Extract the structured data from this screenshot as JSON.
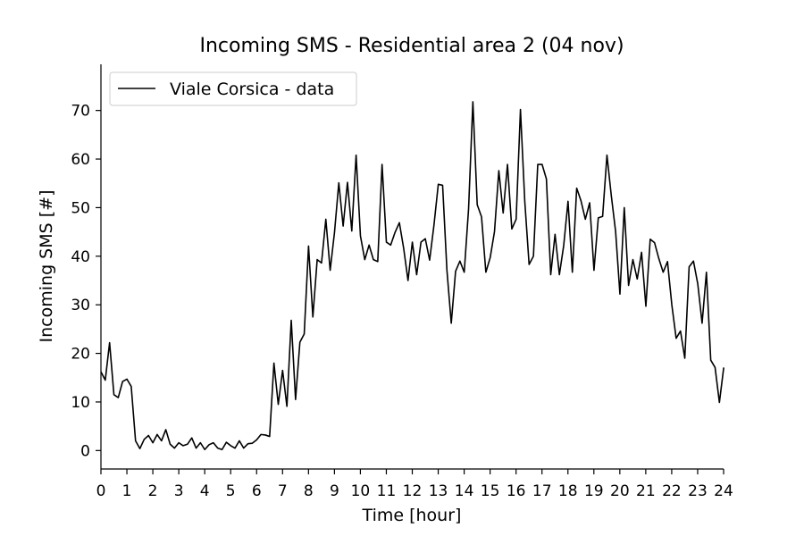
{
  "chart_data": {
    "type": "line",
    "title": "Incoming SMS - Residential area 2 (04 nov)",
    "xlabel": "Time [hour]",
    "ylabel": "Incoming SMS [#]",
    "xlim": [
      0,
      24
    ],
    "ylim": [
      -3.8,
      79.5
    ],
    "xticks": [
      0,
      1,
      2,
      3,
      4,
      5,
      6,
      7,
      8,
      9,
      10,
      11,
      12,
      13,
      14,
      15,
      16,
      17,
      18,
      19,
      20,
      21,
      22,
      23,
      24
    ],
    "yticks": [
      0,
      10,
      20,
      30,
      40,
      50,
      60,
      70
    ],
    "grid": false,
    "legend_position": "top-left",
    "series": [
      {
        "name": "Viale Corsica - data",
        "color": "#000000",
        "x_step": 0.1667,
        "values": [
          16.2,
          14.5,
          22.2,
          11.5,
          10.9,
          14.2,
          14.7,
          13.2,
          2.0,
          0.4,
          2.3,
          3.1,
          1.6,
          3.3,
          2.0,
          4.3,
          1.3,
          0.5,
          1.6,
          1.0,
          1.3,
          2.6,
          0.5,
          1.6,
          0.2,
          1.2,
          1.6,
          0.5,
          0.2,
          1.7,
          1.0,
          0.5,
          2.0,
          0.5,
          1.4,
          1.5,
          2.2,
          3.3,
          3.2,
          2.9,
          18.0,
          9.5,
          16.5,
          9.1,
          26.8,
          10.5,
          22.3,
          24.0,
          42.1,
          27.5,
          39.3,
          38.6,
          47.6,
          37.1,
          44.9,
          55.1,
          46.2,
          55.2,
          45.2,
          60.8,
          44.2,
          39.3,
          42.3,
          39.3,
          38.9,
          58.9,
          42.9,
          42.3,
          44.9,
          46.9,
          41.6,
          35.0,
          42.9,
          36.2,
          42.9,
          43.6,
          39.2,
          46.4,
          54.8,
          54.6,
          37.1,
          26.2,
          36.9,
          39.0,
          36.7,
          49.7,
          71.8,
          50.6,
          48.1,
          36.7,
          39.7,
          45.1,
          57.6,
          48.9,
          58.9,
          45.6,
          47.6,
          70.2,
          51.3,
          38.3,
          40.0,
          58.9,
          58.9,
          55.9,
          36.2,
          44.5,
          36.2,
          42.2,
          51.3,
          36.7,
          54.0,
          51.4,
          47.6,
          51.0,
          37.1,
          47.9,
          48.2,
          60.8,
          52.5,
          45.1,
          32.2,
          50.0,
          34.0,
          39.3,
          35.3,
          40.8,
          29.7,
          43.5,
          42.8,
          39.5,
          36.7,
          38.9,
          30.0,
          23.1,
          24.6,
          19.0,
          37.8,
          39.0,
          34.3,
          26.2,
          36.7,
          18.6,
          17.1,
          9.9,
          17.1
        ]
      }
    ]
  }
}
